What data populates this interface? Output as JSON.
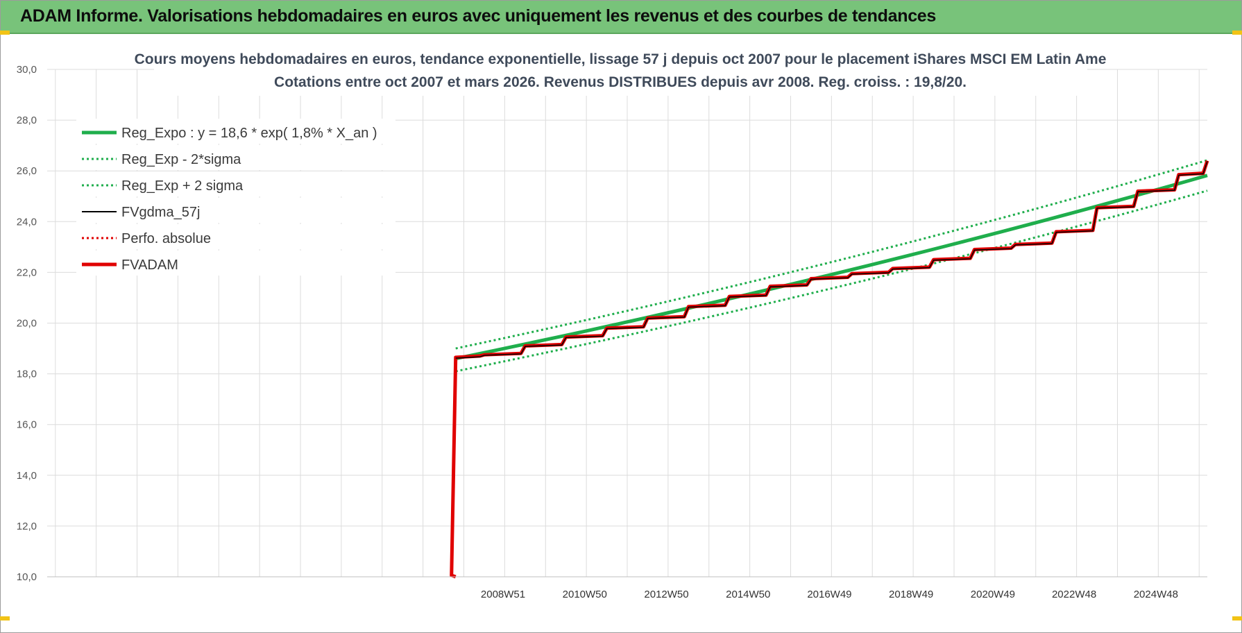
{
  "banner": {
    "title": "ADAM Informe. Valorisations hebdomadaires en euros avec uniquement les revenus et des courbes de tendances"
  },
  "chart_data": {
    "type": "line",
    "title_lines": [
      "Cours moyens hebdomadaires en euros, tendance exponentielle, lissage 57 j depuis oct 2007 pour le placement iShares MSCI EM Latin Ame",
      "Cotations entre oct 2007 et mars 2026. Revenus DISTRIBUES depuis avr 2008. Reg. croiss. : 19,8/20."
    ],
    "xlabel": "",
    "ylabel": "",
    "ylim": [
      10,
      30
    ],
    "y_ticks": [
      "10,0",
      "12,0",
      "14,0",
      "16,0",
      "18,0",
      "20,0",
      "22,0",
      "24,0",
      "26,0",
      "28,0",
      "30,0"
    ],
    "xlim": [
      1997.8,
      2026.2
    ],
    "x_ticks": [
      {
        "label": "2008W51",
        "x": 2008.96
      },
      {
        "label": "2010W50",
        "x": 2010.96
      },
      {
        "label": "2012W50",
        "x": 2012.96
      },
      {
        "label": "2014W50",
        "x": 2014.96
      },
      {
        "label": "2016W49",
        "x": 2016.95
      },
      {
        "label": "2018W49",
        "x": 2018.95
      },
      {
        "label": "2020W49",
        "x": 2020.95
      },
      {
        "label": "2022W48",
        "x": 2022.94
      },
      {
        "label": "2024W48",
        "x": 2024.94
      }
    ],
    "grid": true,
    "legend_position": "top-left",
    "legend": [
      {
        "name": "Reg_Expo : y = 18,6 * exp( 1,8% *  X_an )",
        "color": "#1fae4c",
        "style": "solid-thick"
      },
      {
        "name": "Reg_Exp - 2*sigma",
        "color": "#1fae4c",
        "style": "dotted"
      },
      {
        "name": "Reg_Exp + 2 sigma",
        "color": "#1fae4c",
        "style": "dotted"
      },
      {
        "name": "FVgdma_57j",
        "color": "#000000",
        "style": "solid"
      },
      {
        "name": "Perfo. absolue",
        "color": "#e00000",
        "style": "dotted"
      },
      {
        "name": "FVADAM",
        "color": "#e00000",
        "style": "solid-thick"
      }
    ],
    "series": [
      {
        "name": "Reg_Expo : y = 18,6 * exp( 1,8% *  X_an )",
        "x": [
          2007.8,
          2026.2
        ],
        "y": [
          18.6,
          25.82
        ]
      },
      {
        "name": "Reg_Exp - 2*sigma",
        "x": [
          2007.8,
          2026.2
        ],
        "y": [
          18.1,
          25.22
        ]
      },
      {
        "name": "Reg_Exp + 2 sigma",
        "x": [
          2007.8,
          2026.2
        ],
        "y": [
          19.0,
          26.42
        ]
      },
      {
        "name": "FVADAM",
        "x": [
          2007.8,
          2007.8,
          2008.5,
          2009.5,
          2010.5,
          2011.5,
          2012.5,
          2013.5,
          2014.5,
          2015.5,
          2016.5,
          2017.5,
          2018.5,
          2019.5,
          2020.5,
          2021.5,
          2022.5,
          2023.5,
          2024.5,
          2025.5,
          2026.2
        ],
        "y": [
          10.0,
          18.65,
          18.75,
          19.1,
          19.45,
          19.8,
          20.2,
          20.65,
          21.05,
          21.45,
          21.75,
          21.95,
          22.15,
          22.5,
          22.9,
          23.1,
          23.6,
          24.55,
          25.2,
          25.85,
          26.4
        ]
      },
      {
        "name": "FVgdma_57j",
        "x": [
          2007.8,
          2008.5,
          2009.5,
          2010.5,
          2011.5,
          2012.5,
          2013.5,
          2014.5,
          2015.5,
          2016.5,
          2017.5,
          2018.5,
          2019.5,
          2020.5,
          2021.5,
          2022.5,
          2023.5,
          2024.5,
          2025.5,
          2026.2
        ],
        "y": [
          18.62,
          18.73,
          19.08,
          19.43,
          19.78,
          20.18,
          20.63,
          21.03,
          21.43,
          21.73,
          21.93,
          22.13,
          22.48,
          22.88,
          23.08,
          23.58,
          24.53,
          25.18,
          25.83,
          26.38
        ]
      }
    ]
  }
}
